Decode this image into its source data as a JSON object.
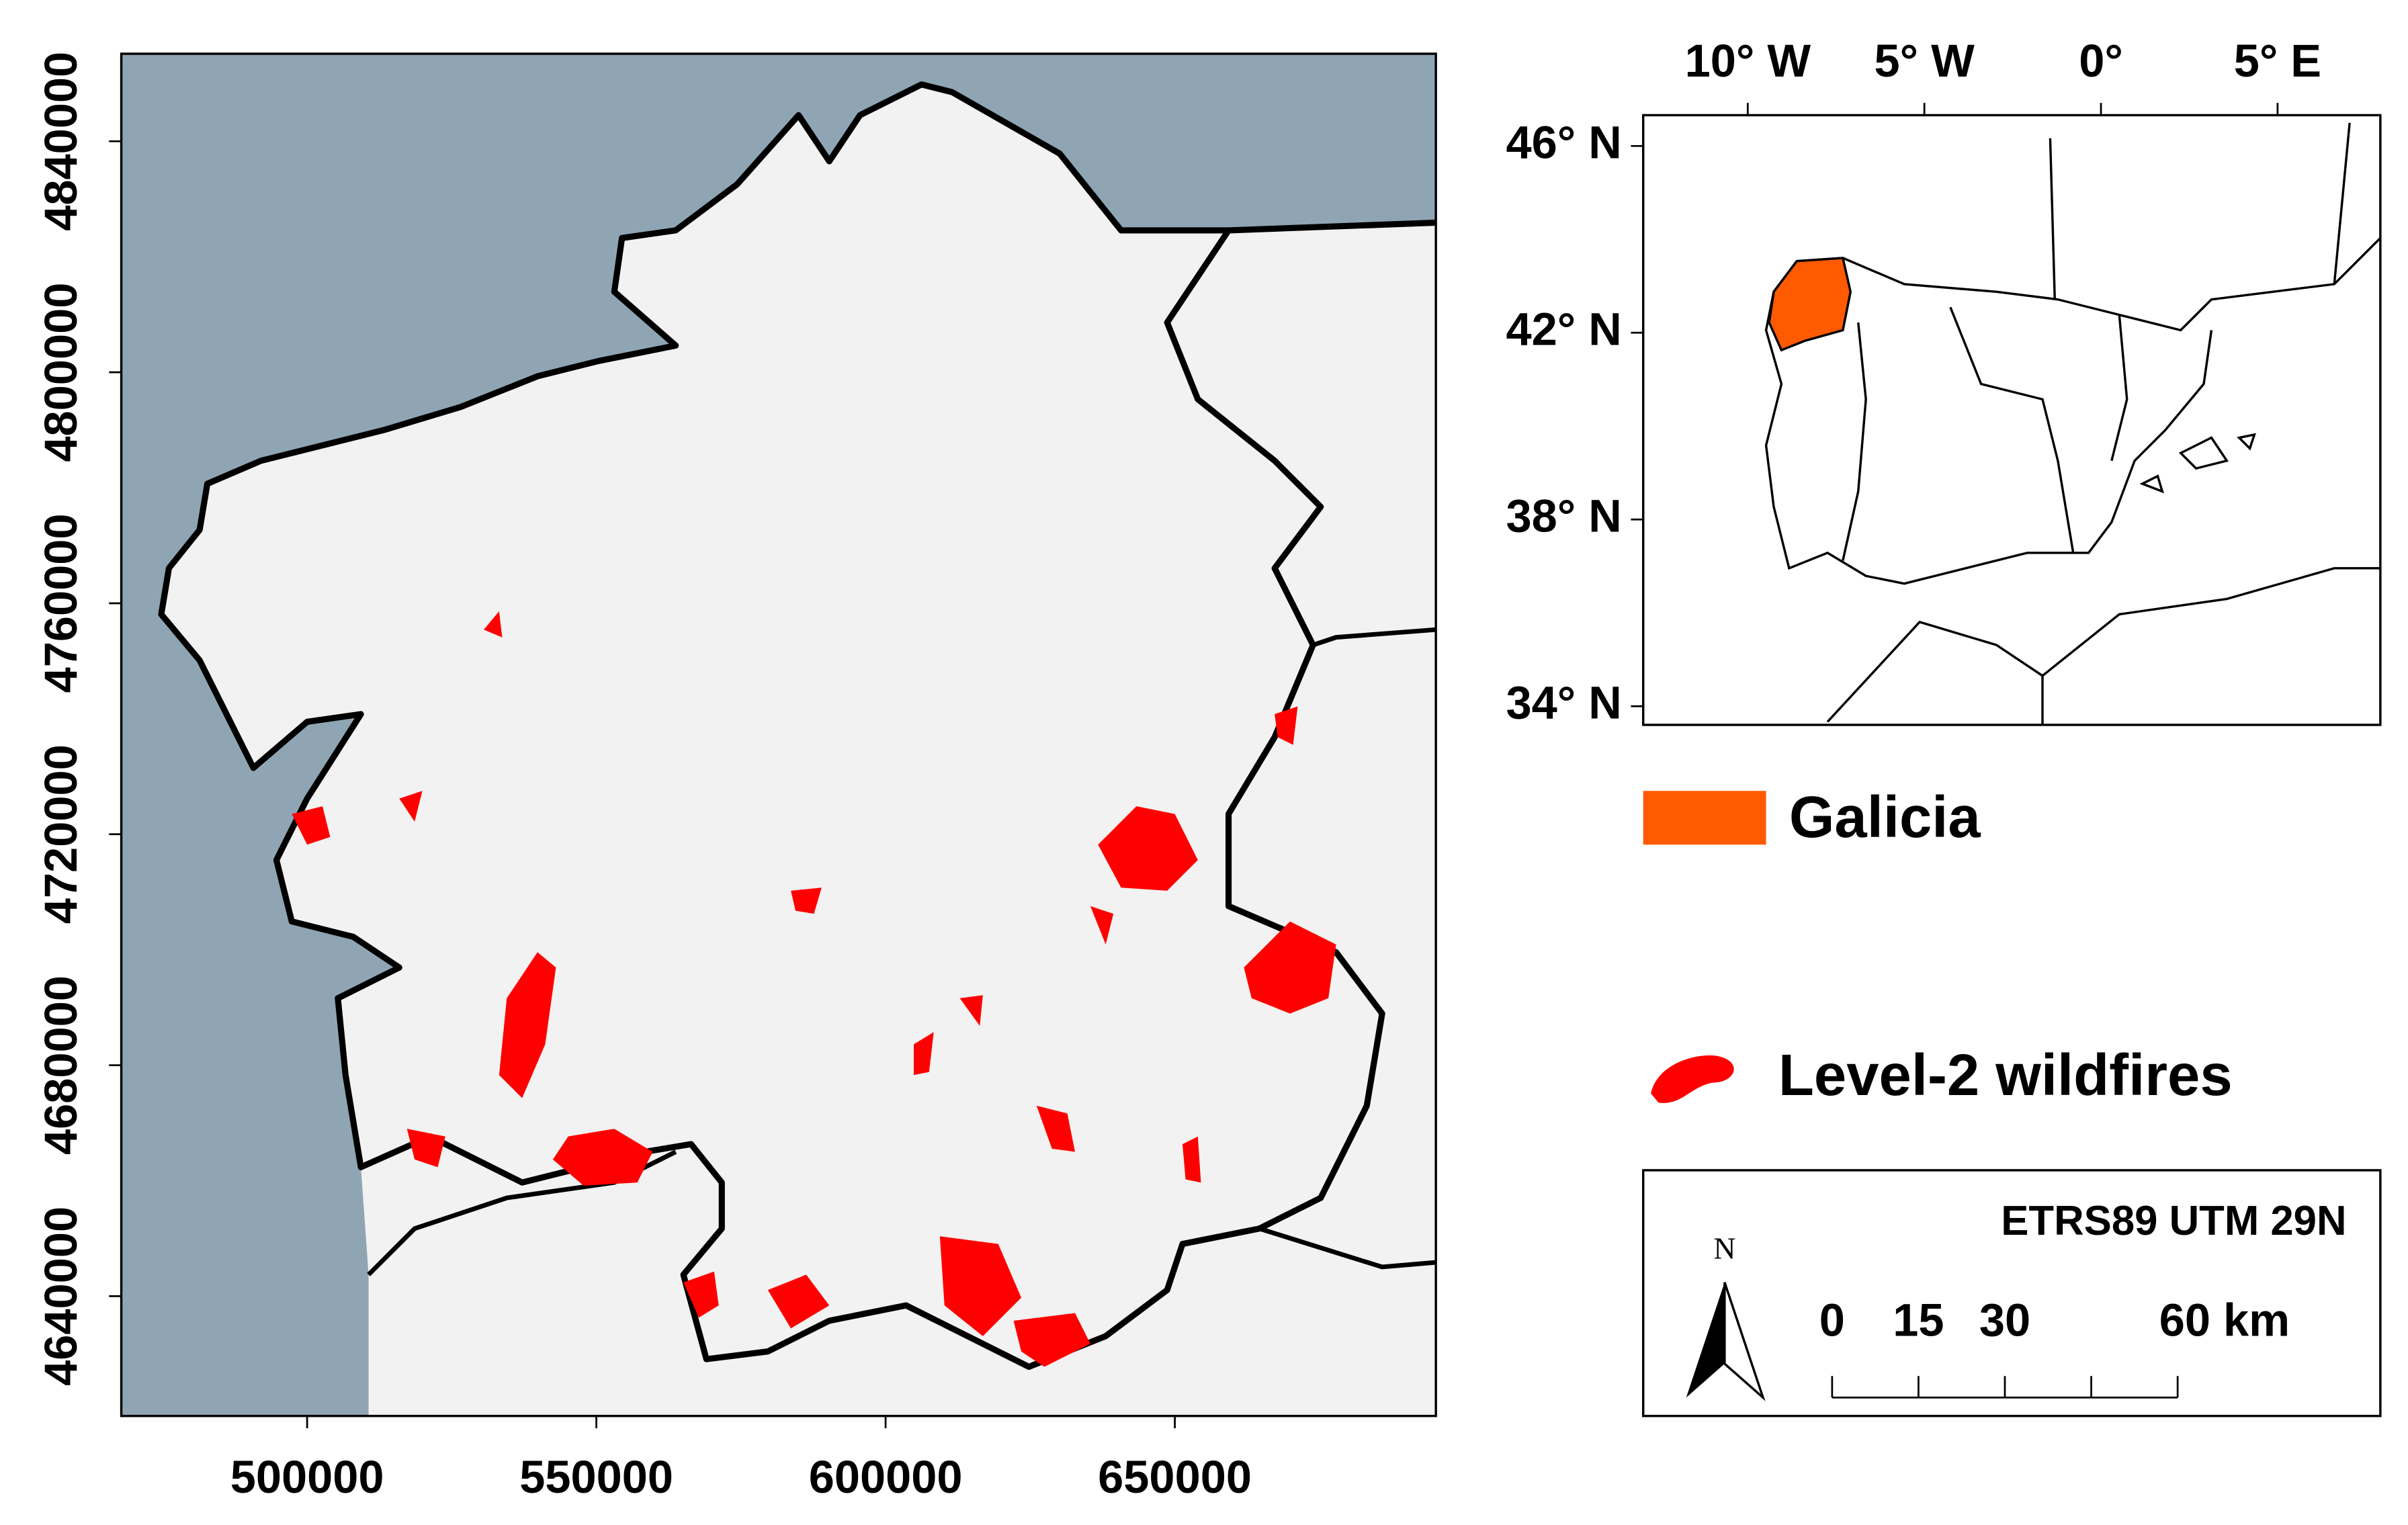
{
  "main_map": {
    "xlim": [
      467880,
      695130
    ],
    "ylim": [
      4619255,
      4855160
    ],
    "xticks": [
      500000,
      550000,
      600000,
      650000
    ],
    "yticks": [
      4640000,
      4680000,
      4720000,
      4760000,
      4800000,
      4840000
    ]
  },
  "inset": {
    "xlim": [
      -12.96,
      7.91
    ],
    "ylim": [
      33.6,
      46.66
    ],
    "xticks": [
      {
        "value": -10,
        "label": "10° W"
      },
      {
        "value": -5,
        "label": "5° W"
      },
      {
        "value": 0,
        "label": "0°"
      },
      {
        "value": 5,
        "label": "5° E"
      }
    ],
    "yticks": [
      {
        "value": 34,
        "label": "34° N"
      },
      {
        "value": 38,
        "label": "38° N"
      },
      {
        "value": 42,
        "label": "42° N"
      },
      {
        "value": 46,
        "label": "46° N"
      }
    ]
  },
  "legend": {
    "items": [
      {
        "label": "Galicia",
        "color": "#ff5a00"
      },
      {
        "label": "Level-2 wildfires",
        "color": "#ff0000"
      }
    ]
  },
  "crs": "ETRS89 UTM 29N",
  "north_arrow": "N",
  "scale_bar": {
    "range": [
      0,
      60
    ],
    "ticks": [
      0,
      15,
      30,
      {
        "value": 45,
        "label": null
      },
      {
        "value": 60,
        "label": "60 km"
      }
    ]
  }
}
